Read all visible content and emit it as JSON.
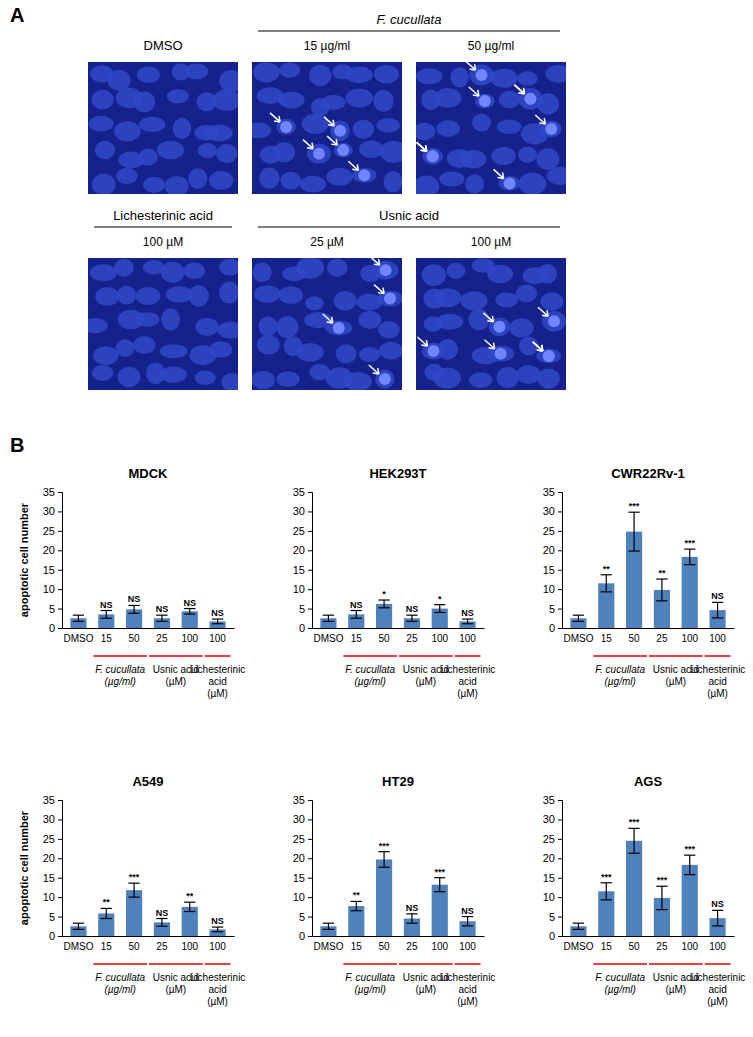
{
  "panel_a": {
    "label": "A",
    "rows": [
      [
        {
          "title": "DMSO",
          "italic": false,
          "panels": [
            null
          ]
        },
        {
          "title": "F. cucullata",
          "italic": true,
          "panels": [
            "15 µg/ml",
            "50 µg/ml"
          ]
        }
      ],
      [
        {
          "title": "Lichesterinic acid",
          "italic": false,
          "panels": [
            "100 µM"
          ]
        },
        {
          "title": "Usnic acid",
          "italic": false,
          "panels": [
            "25 µM",
            "100 µM"
          ]
        }
      ]
    ]
  },
  "panel_b": {
    "label": "B"
  },
  "chart_data": [
    {
      "type": "bar",
      "title": "MDCK",
      "y_label": "apoptotic cell number",
      "color": "#4f81bd",
      "categories": [
        "DMSO",
        "15",
        "50",
        "25",
        "100",
        "100"
      ],
      "values": [
        2.5,
        3.5,
        4.8,
        2.5,
        4.3,
        1.7
      ],
      "errors": [
        0.8,
        1.0,
        1.0,
        0.8,
        0.7,
        0.6
      ],
      "annotations": [
        null,
        "NS",
        "NS",
        "NS",
        "NS",
        "NS"
      ],
      "groups": [
        {
          "label_lines": [
            "F. cucullata",
            "(µg/ml)"
          ],
          "italic": true,
          "members": [
            1,
            2
          ]
        },
        {
          "label_lines": [
            "Usnic acid",
            "(µM)"
          ],
          "italic": false,
          "members": [
            3,
            4
          ]
        },
        {
          "label_lines": [
            "Lichesterinic",
            "acid",
            "(µM)"
          ],
          "italic": false,
          "members": [
            5
          ]
        }
      ],
      "ylim": [
        0,
        35
      ],
      "yticks": [
        0,
        5,
        10,
        15,
        20,
        25,
        30,
        35
      ],
      "grid": false
    },
    {
      "type": "bar",
      "title": "HEK293T",
      "color": "#4f81bd",
      "categories": [
        "DMSO",
        "15",
        "50",
        "25",
        "100",
        "100"
      ],
      "values": [
        2.5,
        3.5,
        6.2,
        2.5,
        5.0,
        1.7
      ],
      "errors": [
        0.8,
        1.0,
        1.0,
        0.8,
        1.0,
        0.6
      ],
      "annotations": [
        null,
        "NS",
        "*",
        "NS",
        "*",
        "NS"
      ],
      "groups": [
        {
          "label_lines": [
            "F. cucullata",
            "(µg/ml)"
          ],
          "italic": true,
          "members": [
            1,
            2
          ]
        },
        {
          "label_lines": [
            "Usnic acid",
            "(µM)"
          ],
          "italic": false,
          "members": [
            3,
            4
          ]
        },
        {
          "label_lines": [
            "Lichesterinic",
            "acid",
            "(µM)"
          ],
          "italic": false,
          "members": [
            5
          ]
        }
      ],
      "ylim": [
        0,
        35
      ],
      "yticks": [
        0,
        5,
        10,
        15,
        20,
        25,
        30,
        35
      ],
      "grid": false
    },
    {
      "type": "bar",
      "title": "CWR22Rv-1",
      "color": "#4f81bd",
      "categories": [
        "DMSO",
        "15",
        "50",
        "25",
        "100",
        "100"
      ],
      "values": [
        2.5,
        11.5,
        24.8,
        9.8,
        18.3,
        4.6
      ],
      "errors": [
        0.8,
        2.2,
        5.0,
        2.8,
        2.0,
        2.0
      ],
      "annotations": [
        null,
        "**",
        "***",
        "**",
        "***",
        "NS"
      ],
      "groups": [
        {
          "label_lines": [
            "F. cucullata",
            "(µg/ml)"
          ],
          "italic": true,
          "members": [
            1,
            2
          ]
        },
        {
          "label_lines": [
            "Usnic acid",
            "(µM)"
          ],
          "italic": false,
          "members": [
            3,
            4
          ]
        },
        {
          "label_lines": [
            "Lichesterinic",
            "acid",
            "(µM)"
          ],
          "italic": false,
          "members": [
            5
          ]
        }
      ],
      "ylim": [
        0,
        35
      ],
      "yticks": [
        0,
        5,
        10,
        15,
        20,
        25,
        30,
        35
      ],
      "grid": false
    },
    {
      "type": "bar",
      "title": "A549",
      "y_label": "apoptotic cell number",
      "color": "#4f81bd",
      "categories": [
        "DMSO",
        "15",
        "50",
        "25",
        "100",
        "100"
      ],
      "values": [
        2.5,
        5.8,
        11.8,
        3.5,
        7.5,
        1.7
      ],
      "errors": [
        0.8,
        1.3,
        1.8,
        1.0,
        1.2,
        0.6
      ],
      "annotations": [
        null,
        "**",
        "***",
        "NS",
        "**",
        "NS"
      ],
      "groups": [
        {
          "label_lines": [
            "F. cucullata",
            "(µg/ml)"
          ],
          "italic": true,
          "members": [
            1,
            2
          ]
        },
        {
          "label_lines": [
            "Usnic acid",
            "(µM)"
          ],
          "italic": false,
          "members": [
            3,
            4
          ]
        },
        {
          "label_lines": [
            "Lichesterinic",
            "acid",
            "(µM)"
          ],
          "italic": false,
          "members": [
            5
          ]
        }
      ],
      "ylim": [
        0,
        35
      ],
      "yticks": [
        0,
        5,
        10,
        15,
        20,
        25,
        30,
        35
      ],
      "grid": false
    },
    {
      "type": "bar",
      "title": "HT29",
      "color": "#4f81bd",
      "categories": [
        "DMSO",
        "15",
        "50",
        "25",
        "100",
        "100"
      ],
      "values": [
        2.5,
        7.7,
        19.7,
        4.5,
        13.2,
        3.8
      ],
      "errors": [
        0.8,
        1.2,
        2.0,
        1.2,
        1.8,
        1.2
      ],
      "annotations": [
        null,
        "**",
        "***",
        "NS",
        "***",
        "NS"
      ],
      "groups": [
        {
          "label_lines": [
            "F. cucullata",
            "(µg/ml)"
          ],
          "italic": true,
          "members": [
            1,
            2
          ]
        },
        {
          "label_lines": [
            "Usnic acid",
            "(µM)"
          ],
          "italic": false,
          "members": [
            3,
            4
          ]
        },
        {
          "label_lines": [
            "Lichesterinic",
            "acid",
            "(µM)"
          ],
          "italic": false,
          "members": [
            5
          ]
        }
      ],
      "ylim": [
        0,
        35
      ],
      "yticks": [
        0,
        5,
        10,
        15,
        20,
        25,
        30,
        35
      ],
      "grid": false
    },
    {
      "type": "bar",
      "title": "AGS",
      "color": "#4f81bd",
      "categories": [
        "DMSO",
        "15",
        "50",
        "25",
        "100",
        "100"
      ],
      "values": [
        2.5,
        11.5,
        24.5,
        9.8,
        18.3,
        4.6
      ],
      "errors": [
        0.8,
        2.2,
        3.2,
        3.0,
        2.5,
        2.0
      ],
      "annotations": [
        null,
        "***",
        "***",
        "***",
        "***",
        "NS"
      ],
      "groups": [
        {
          "label_lines": [
            "F. cucullata",
            "(µg/ml)"
          ],
          "italic": true,
          "members": [
            1,
            2
          ]
        },
        {
          "label_lines": [
            "Usnic acid",
            "(µM)"
          ],
          "italic": false,
          "members": [
            3,
            4
          ]
        },
        {
          "label_lines": [
            "Lichesterinic",
            "acid",
            "(µM)"
          ],
          "italic": false,
          "members": [
            5
          ]
        }
      ],
      "ylim": [
        0,
        35
      ],
      "yticks": [
        0,
        5,
        10,
        15,
        20,
        25,
        30,
        35
      ],
      "grid": false
    }
  ]
}
